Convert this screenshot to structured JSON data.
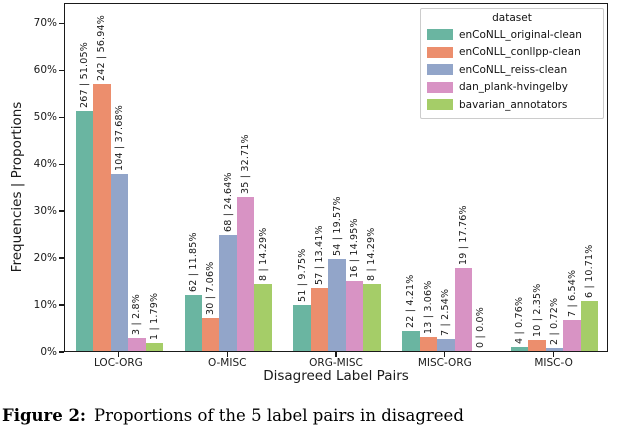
{
  "figure": {
    "ylabel": "Frequencies | Proportions",
    "xlabel": "Disagreed Label Pairs"
  },
  "legend": {
    "title": "dataset"
  },
  "caption": {
    "prefix": "Figure 2:",
    "text": "Proportions of the 5 label pairs in disagreed"
  },
  "chart_data": {
    "type": "bar",
    "title": "",
    "xlabel": "Disagreed Label Pairs",
    "ylabel": "Frequencies | Proportions",
    "categories": [
      "LOC-ORG",
      "O-MISC",
      "ORG-MISC",
      "MISC-ORG",
      "MISC-O"
    ],
    "yticks": [
      "0%",
      "10%",
      "20%",
      "30%",
      "40%",
      "50%",
      "60%",
      "70%"
    ],
    "ylim": [
      0,
      74.3
    ],
    "grid": false,
    "legend_title": "dataset",
    "legend_position": "upper right",
    "bar_label_format": "frequency | proportion",
    "series": [
      {
        "name": "enCoNLL_original-clean",
        "color": "#6ab5a1",
        "counts": [
          267,
          62,
          51,
          22,
          4
        ],
        "percents": [
          51.05,
          11.85,
          9.75,
          4.21,
          0.76
        ],
        "labels": [
          "267 | 51.05%",
          "62 | 11.85%",
          "51 | 9.75%",
          "22 | 4.21%",
          "4 | 0.76%"
        ]
      },
      {
        "name": "enCoNLL_conllpp-clean",
        "color": "#ec8e6d",
        "counts": [
          242,
          30,
          57,
          13,
          10
        ],
        "percents": [
          56.94,
          7.06,
          13.41,
          3.06,
          2.35
        ],
        "labels": [
          "242 | 56.94%",
          "30 | 7.06%",
          "57 | 13.41%",
          "13 | 3.06%",
          "10 | 2.35%"
        ]
      },
      {
        "name": "enCoNLL_reiss-clean",
        "color": "#92a5c9",
        "counts": [
          104,
          68,
          54,
          7,
          2
        ],
        "percents": [
          37.68,
          24.64,
          19.57,
          2.54,
          0.72
        ],
        "labels": [
          "104 | 37.68%",
          "68 | 24.64%",
          "54 | 19.57%",
          "7 | 2.54%",
          "2 | 0.72%"
        ]
      },
      {
        "name": "dan_plank-hvingelby",
        "color": "#d893c4",
        "counts": [
          3,
          35,
          16,
          19,
          7
        ],
        "percents": [
          2.8,
          32.71,
          14.95,
          17.76,
          6.54
        ],
        "labels": [
          "3 | 2.8%",
          "35 | 32.71%",
          "16 | 14.95%",
          "19 | 17.76%",
          "7 | 6.54%"
        ]
      },
      {
        "name": "bavarian_annotators",
        "color": "#a5cd68",
        "counts": [
          1,
          8,
          8,
          0,
          6
        ],
        "percents": [
          1.79,
          14.29,
          14.29,
          0.0,
          10.71
        ],
        "labels": [
          "1 | 1.79%",
          "8 | 14.29%",
          "8 | 14.29%",
          "0 | 0.0%",
          "6 | 10.71%"
        ]
      }
    ]
  }
}
